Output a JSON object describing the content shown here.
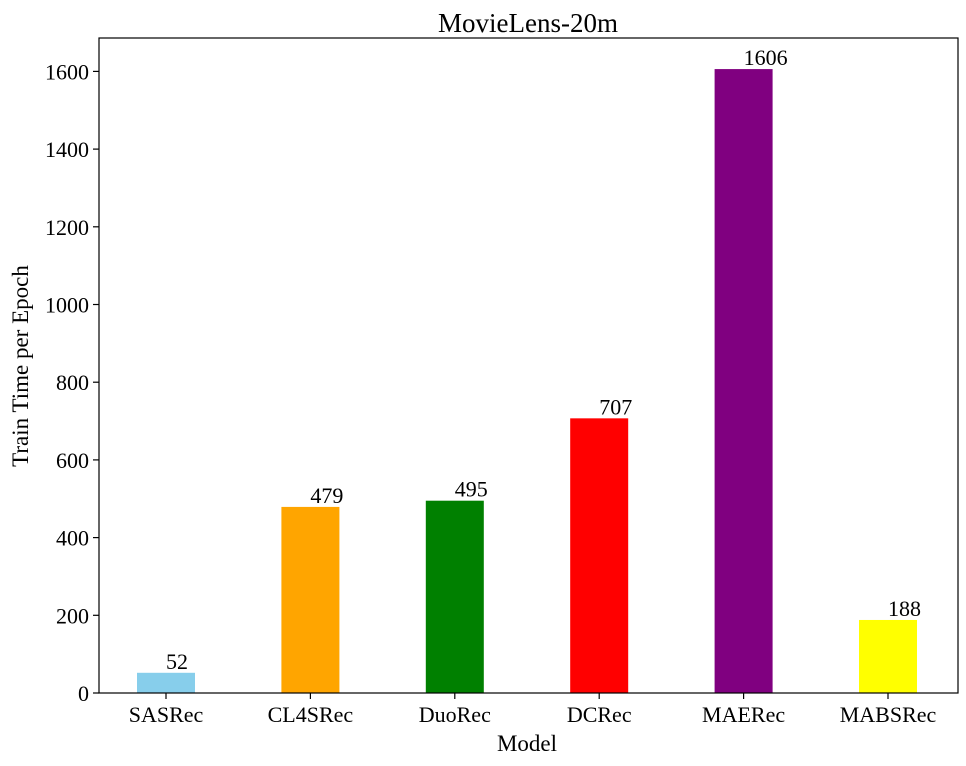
{
  "chart_data": {
    "type": "bar",
    "title": "MovieLens-20m",
    "xlabel": "Model",
    "ylabel": "Train Time per Epoch",
    "categories": [
      "SASRec",
      "CL4SRec",
      "DuoRec",
      "DCRec",
      "MAERec",
      "MABSRec"
    ],
    "values": [
      52,
      479,
      495,
      707,
      1606,
      188
    ],
    "value_labels": [
      "52",
      "479",
      "495",
      "707",
      "1606",
      "188"
    ],
    "colors": [
      "#87ceeb",
      "#ffa500",
      "#008000",
      "#ff0000",
      "#800080",
      "#ffff00"
    ],
    "ylim": [
      0,
      1686
    ],
    "yticks": [
      0,
      200,
      400,
      600,
      800,
      1000,
      1200,
      1400,
      1600
    ],
    "grid": false,
    "legend": "none"
  }
}
